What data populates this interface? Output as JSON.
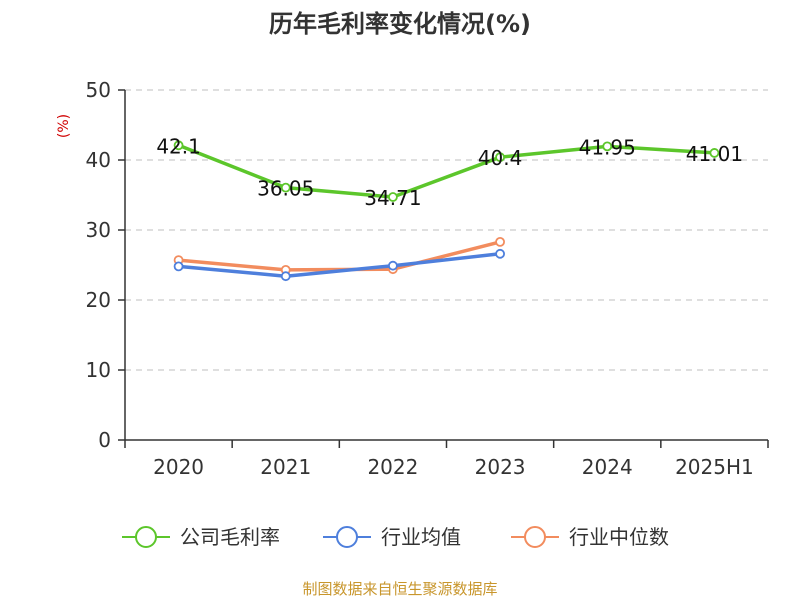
{
  "chart_data": {
    "type": "line",
    "title": "历年毛利率变化情况(%)",
    "y_unit": "(%)",
    "categories": [
      "2020",
      "2021",
      "2022",
      "2023",
      "2024",
      "2025H1"
    ],
    "ylim": [
      0,
      50
    ],
    "yticks": [
      0,
      10,
      20,
      30,
      40,
      50
    ],
    "grid": true,
    "legend_position": "bottom",
    "series": [
      {
        "name": "公司毛利率",
        "color": "#5cc62b",
        "values": [
          42.1,
          36.05,
          34.71,
          40.4,
          41.95,
          41.01
        ],
        "labels": [
          "42.1",
          "36.05",
          "34.71",
          "40.4",
          "41.95",
          "41.01"
        ]
      },
      {
        "name": "行业均值",
        "color": "#4e7fdc",
        "values": [
          24.8,
          23.4,
          24.9,
          26.6,
          null,
          null
        ]
      },
      {
        "name": "行业中位数",
        "color": "#f28c5e",
        "values": [
          25.7,
          24.3,
          24.4,
          28.3,
          null,
          null
        ]
      }
    ],
    "source": "制图数据来自恒生聚源数据库"
  }
}
